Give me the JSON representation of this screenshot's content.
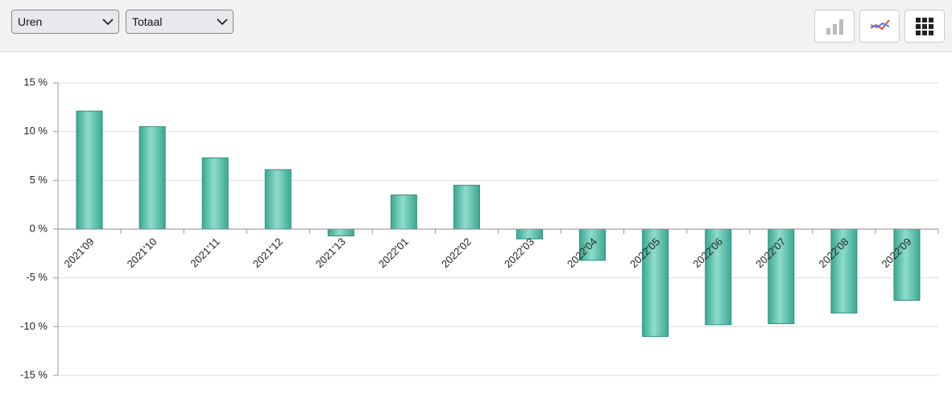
{
  "toolbar": {
    "selects": [
      "Uren",
      "Totaal"
    ]
  },
  "chart_data": {
    "type": "bar",
    "categories": [
      "2021'09",
      "2021'10",
      "2021'11",
      "2021'12",
      "2021'13",
      "2022'01",
      "2022'02",
      "2022'03",
      "2022'04",
      "2022'05",
      "2022'06",
      "2022'07",
      "2022'08",
      "2022'09"
    ],
    "values": [
      12.1,
      10.5,
      7.3,
      6.1,
      -0.7,
      3.5,
      4.5,
      -1.0,
      -3.2,
      -11.0,
      -9.8,
      -9.7,
      -8.6,
      -7.3
    ],
    "color": "#4dbfa8",
    "ylim": [
      -15,
      15
    ],
    "yticks": [
      {
        "value": 15,
        "label": "15 %"
      },
      {
        "value": 10,
        "label": "10 %"
      },
      {
        "value": 5,
        "label": "5 %"
      },
      {
        "value": 0,
        "label": "0 %"
      },
      {
        "value": -5,
        "label": "-5 %"
      },
      {
        "value": -10,
        "label": "-10 %"
      },
      {
        "value": -15,
        "label": "-15 %"
      }
    ],
    "grid": true
  }
}
